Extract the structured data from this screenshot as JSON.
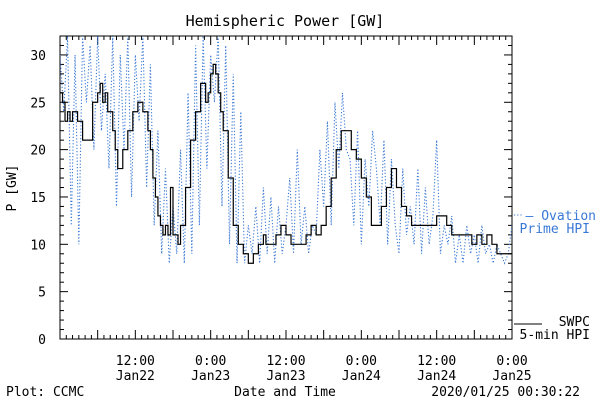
{
  "chart_data": {
    "type": "line",
    "title": "Hemispheric Power [GW]",
    "xlabel": "Date and Time",
    "ylabel": "P [GW]",
    "ylim": [
      0,
      32
    ],
    "yticks": [
      0,
      5,
      10,
      15,
      20,
      25,
      30
    ],
    "x_range_hours": [
      0,
      72
    ],
    "xtick_labels": [
      {
        "hour": 12,
        "time": "12:00",
        "date": "Jan22"
      },
      {
        "hour": 24,
        "time": "0:00",
        "date": "Jan23"
      },
      {
        "hour": 36,
        "time": "12:00",
        "date": "Jan23"
      },
      {
        "hour": 48,
        "time": "0:00",
        "date": "Jan24"
      },
      {
        "hour": 60,
        "time": "12:00",
        "date": "Jan24"
      },
      {
        "hour": 72,
        "time": "0:00",
        "date": "Jan25"
      }
    ],
    "grid": false,
    "legend_placement": "right",
    "series": [
      {
        "name_line1": "SWPC",
        "name_line2": "5-min HPI",
        "style": "solid",
        "color": "#000000",
        "x": [
          0,
          0.4,
          0.8,
          1.2,
          1.6,
          2.0,
          2.4,
          2.8,
          3.6,
          4.4,
          5.2,
          5.6,
          6.0,
          6.4,
          6.8,
          7.2,
          7.6,
          8.0,
          8.4,
          8.8,
          9.2,
          10.0,
          10.8,
          11.6,
          12.4,
          13.2,
          13.6,
          14.0,
          14.4,
          14.8,
          15.2,
          15.6,
          16.0,
          16.4,
          16.8,
          17.2,
          17.6,
          18.0,
          18.4,
          18.8,
          19.2,
          20.0,
          20.8,
          21.6,
          22.4,
          23.2,
          23.6,
          24.0,
          24.4,
          24.8,
          25.2,
          25.6,
          26.0,
          26.8,
          27.6,
          28.4,
          29.2,
          30.0,
          30.8,
          31.2,
          31.6,
          32.0,
          32.4,
          32.8,
          33.6,
          34.4,
          35.2,
          36.0,
          36.8,
          37.6,
          38.4,
          39.2,
          40.0,
          40.8,
          41.6,
          42.4,
          43.2,
          44.0,
          44.8,
          45.6,
          46.4,
          47.2,
          48.0,
          48.8,
          49.6,
          50.4,
          51.2,
          52.0,
          52.8,
          53.6,
          54.4,
          55.2,
          56.0,
          56.8,
          57.6,
          58.4,
          59.2,
          60.0,
          60.8,
          61.6,
          62.4,
          63.2,
          64.0,
          64.8,
          65.6,
          66.4,
          67.2,
          68.0,
          68.8,
          69.6,
          70.4,
          71.2,
          72.0
        ],
        "y": [
          26,
          25,
          23,
          24,
          23,
          24,
          24,
          23,
          21,
          21,
          25,
          25,
          26,
          27,
          25,
          26,
          24,
          24,
          22,
          20,
          18,
          20,
          22,
          24,
          25,
          24,
          24,
          22,
          20,
          17,
          15,
          13,
          12,
          11,
          12,
          11,
          16,
          11,
          11,
          10,
          12,
          16,
          21,
          24,
          27,
          25,
          26,
          28,
          29,
          28,
          26,
          24,
          22,
          17,
          12,
          10,
          9,
          8,
          9,
          9,
          10,
          10,
          11,
          10,
          10,
          11,
          12,
          11,
          10,
          10,
          10,
          11,
          12,
          11,
          12,
          14,
          17,
          20,
          22,
          22,
          20,
          19,
          17,
          15,
          12,
          12,
          14,
          16,
          18,
          16,
          14,
          13,
          12,
          12,
          12,
          12,
          12,
          13,
          13,
          12,
          11,
          11,
          11,
          11,
          10,
          11,
          10,
          11,
          10,
          9,
          9,
          9,
          9
        ]
      },
      {
        "name_line1": "— Ovation",
        "name_line2": "Prime HPI",
        "style": "dotted",
        "color": "#3a78d6",
        "x": [
          0,
          0.6,
          1.2,
          1.8,
          2.4,
          3.0,
          3.6,
          4.2,
          4.8,
          5.4,
          6.0,
          6.6,
          7.2,
          7.8,
          8.4,
          9.0,
          9.6,
          10.2,
          10.8,
          11.4,
          12.0,
          12.6,
          13.2,
          13.8,
          14.4,
          15.0,
          15.6,
          16.2,
          16.8,
          17.4,
          18.0,
          18.6,
          19.2,
          19.8,
          20.4,
          21.0,
          21.6,
          22.2,
          22.8,
          23.4,
          24.0,
          24.6,
          25.2,
          25.8,
          26.4,
          27.0,
          27.6,
          28.2,
          28.8,
          29.4,
          30.0,
          30.6,
          31.2,
          31.8,
          32.4,
          33.0,
          33.6,
          34.2,
          34.8,
          35.4,
          36.0,
          36.6,
          37.2,
          37.8,
          38.4,
          39.0,
          39.6,
          40.2,
          40.8,
          41.4,
          42.0,
          42.6,
          43.2,
          43.8,
          44.4,
          45.0,
          45.6,
          46.2,
          46.8,
          47.4,
          48.0,
          48.6,
          49.2,
          49.8,
          50.4,
          51.0,
          51.6,
          52.2,
          52.8,
          53.4,
          54.0,
          54.6,
          55.2,
          55.8,
          56.4,
          57.0,
          57.6,
          58.2,
          58.8,
          59.4,
          60.0,
          60.6,
          61.2,
          61.8,
          62.4,
          63.0,
          63.6,
          64.2,
          64.8,
          65.4,
          66.0,
          66.6,
          67.2,
          67.8,
          68.4,
          69.0,
          69.6,
          70.2,
          70.8,
          71.4,
          72.0
        ],
        "y": [
          30,
          24,
          32,
          12,
          30,
          10,
          32,
          25,
          31,
          20,
          32,
          22,
          28,
          18,
          32,
          14,
          30,
          20,
          32,
          15,
          30,
          23,
          32,
          16,
          29,
          12,
          22,
          9,
          18,
          8,
          14,
          9,
          20,
          8,
          26,
          9,
          31,
          12,
          32,
          18,
          30,
          25,
          32,
          14,
          31,
          10,
          28,
          8,
          24,
          8,
          12,
          9,
          14,
          8,
          16,
          9,
          15,
          8,
          14,
          9,
          12,
          17,
          9,
          20,
          10,
          14,
          9,
          12,
          11,
          20,
          14,
          23,
          12,
          25,
          18,
          26,
          20,
          19,
          12,
          22,
          10,
          19,
          14,
          22,
          18,
          12,
          21,
          10,
          19,
          12,
          9,
          18,
          11,
          14,
          10,
          18,
          9,
          16,
          10,
          13,
          21,
          9,
          12,
          10,
          13,
          8,
          11,
          8,
          12,
          9,
          11,
          8,
          12,
          9,
          10,
          8,
          10,
          9,
          8,
          9,
          12
        ]
      }
    ]
  },
  "footer": {
    "left": "Plot: CCMC",
    "right": "2020/01/25 00:30:22"
  }
}
